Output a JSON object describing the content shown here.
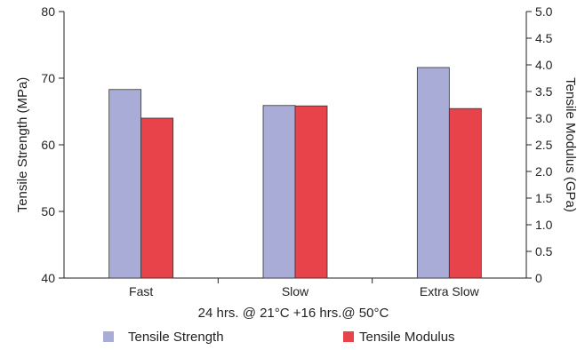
{
  "chart_data": {
    "type": "bar",
    "categories": [
      "Fast",
      "Slow",
      "Extra Slow"
    ],
    "xlabel": "24 hrs. @ 21°C +16 hrs.@ 50°C",
    "series": [
      {
        "name": "Tensile Strength",
        "axis": "left",
        "color": "#a9acd6",
        "values": [
          68.3,
          65.9,
          71.6
        ]
      },
      {
        "name": "Tensile Modulus",
        "axis": "right",
        "color": "#e8434a",
        "values": [
          3.0,
          3.23,
          3.18
        ]
      }
    ],
    "y_left": {
      "label": "Tensile Strength (MPa)",
      "ylim": [
        40,
        80
      ],
      "ticks": [
        "40",
        "50",
        "60",
        "70",
        "80"
      ]
    },
    "y_right": {
      "label": "Tensile Modulus (GPa)",
      "ylim": [
        0,
        5.0
      ],
      "ticks": [
        "0",
        "0.5",
        "1.0",
        "1.5",
        "2.0",
        "2.5",
        "3.0",
        "3.5",
        "4.0",
        "4.5",
        "5.0"
      ]
    },
    "legend_position": "bottom",
    "grid": false
  }
}
